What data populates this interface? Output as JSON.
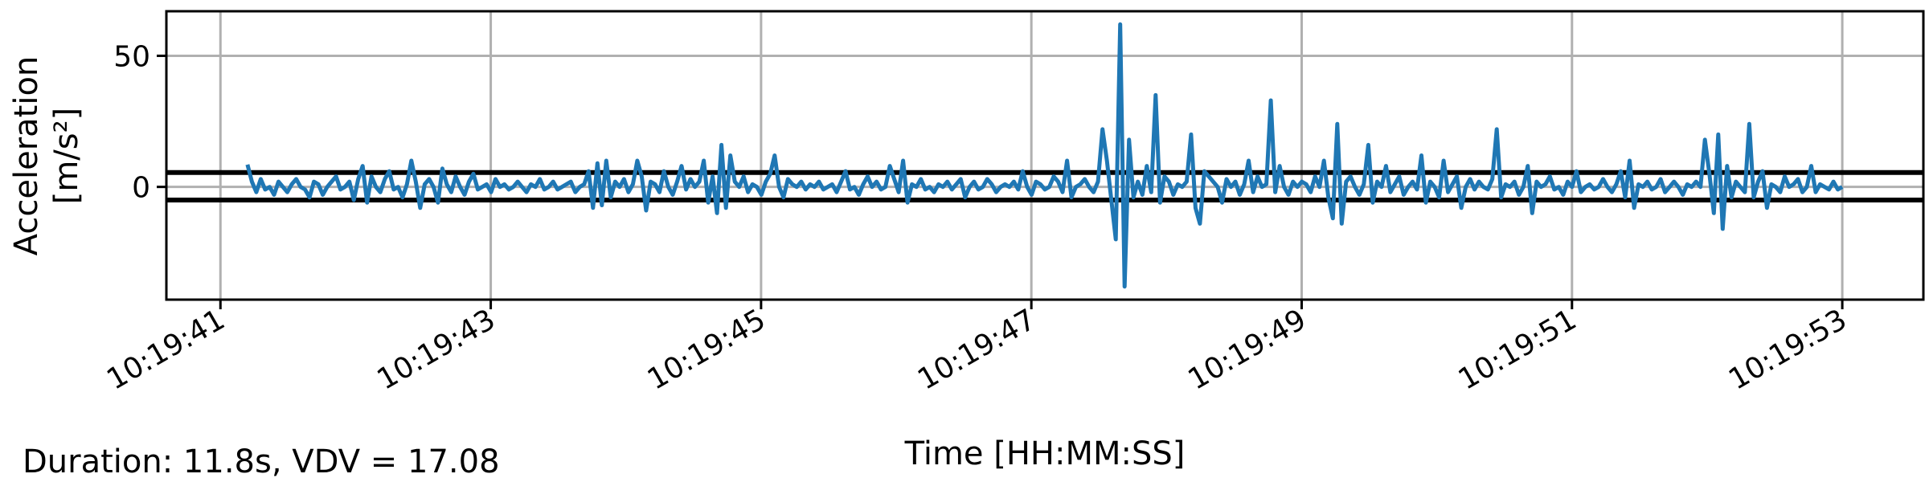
{
  "footer": {
    "summary": "Duration: 11.8s, VDV = 17.08"
  },
  "chart_data": {
    "type": "line",
    "xlabel": "Time [HH:MM:SS]",
    "ylabel_line1": "Acceleration",
    "ylabel_line2": "[m/s²]",
    "xlim": [
      "10:19:40.6",
      "10:19:53.6"
    ],
    "ylim": [
      -43,
      67
    ],
    "x_ticks": [
      "10:19:41",
      "10:19:43",
      "10:19:45",
      "10:19:47",
      "10:19:49",
      "10:19:51",
      "10:19:53"
    ],
    "y_ticks": [
      0,
      50
    ],
    "grid": true,
    "colors": {
      "series": "#1f77b4",
      "threshold": "#000000",
      "grid": "#b0b0b0"
    },
    "thresholds": [
      5.5,
      -5
    ],
    "series": [
      {
        "x_start": "10:19:41.2",
        "x_end": "10:19:53.0",
        "values": [
          8.5,
          2,
          -2,
          3,
          -1,
          0,
          -3,
          2,
          0,
          -2,
          1,
          3,
          0,
          -1,
          -4,
          2,
          1,
          -3,
          0,
          2,
          4,
          -1,
          0,
          2,
          -5,
          3,
          8,
          -6,
          4,
          0,
          -2,
          3,
          6,
          -1,
          0,
          -4,
          1,
          10,
          2,
          -8,
          1,
          3,
          0,
          -6,
          7,
          1,
          -2,
          4,
          0,
          -3,
          2,
          5,
          -1,
          0,
          1,
          -2,
          3,
          0,
          1,
          -1,
          0,
          2,
          0,
          -2,
          1,
          0,
          3,
          -1,
          0,
          2,
          -1,
          0,
          1,
          2,
          -2,
          0,
          1,
          6,
          -8,
          9,
          -7,
          10,
          -4,
          2,
          0,
          3,
          -2,
          1,
          10,
          4,
          -9,
          2,
          1,
          -2,
          6,
          0,
          -3,
          2,
          8,
          -1,
          3,
          0,
          2,
          10,
          -6,
          4,
          -10,
          16,
          -8,
          12,
          2,
          0,
          4,
          -2,
          1,
          0,
          -3,
          2,
          5,
          12,
          0,
          -4,
          3,
          1,
          0,
          2,
          -1,
          1,
          0,
          2,
          -1,
          0,
          1,
          -2,
          2,
          6,
          -1,
          0,
          -3,
          1,
          4,
          0,
          2,
          -1,
          0,
          8,
          3,
          -2,
          10,
          -6,
          1,
          0,
          3,
          -1,
          0,
          -2,
          1,
          0,
          2,
          -1,
          1,
          3,
          -4,
          0,
          2,
          -1,
          0,
          3,
          1,
          -2,
          0,
          1,
          0,
          2,
          -1,
          6,
          0,
          -3,
          2,
          1,
          -1,
          0,
          4,
          2,
          -2,
          10,
          -4,
          0,
          1,
          3,
          0,
          -2,
          2,
          22,
          10,
          -5,
          -20,
          62,
          -38,
          18,
          -4,
          2,
          -3,
          8,
          -2,
          35,
          -6,
          4,
          2,
          -3,
          1,
          0,
          2,
          20,
          -8,
          -14,
          6,
          4,
          2,
          0,
          -6,
          3,
          0,
          2,
          -3,
          1,
          10,
          -2,
          4,
          0,
          1,
          33,
          -2,
          8,
          0,
          -3,
          2,
          0,
          2,
          1,
          -2,
          4,
          0,
          10,
          -4,
          -12,
          24,
          -14,
          2,
          4,
          0,
          -3,
          1,
          16,
          -6,
          2,
          0,
          8,
          -2,
          1,
          4,
          -3,
          0,
          2,
          -1,
          12,
          -6,
          2,
          0,
          -4,
          10,
          -2,
          1,
          4,
          -8,
          0,
          3,
          -1,
          2,
          0,
          -1,
          3,
          22,
          -4,
          1,
          0,
          2,
          -3,
          0,
          8,
          -10,
          2,
          0,
          1,
          4,
          -1,
          0,
          -3,
          2,
          0,
          6,
          -2,
          0,
          1,
          -1,
          0,
          3,
          0,
          -2,
          1,
          6,
          -4,
          10,
          -8,
          1,
          0,
          2,
          -1,
          0,
          3,
          -2,
          0,
          2,
          0,
          -3,
          1,
          0,
          2,
          0,
          18,
          5,
          -10,
          20,
          -16,
          8,
          -4,
          2,
          0,
          -2,
          24,
          -4,
          2,
          6,
          -8,
          1,
          0,
          -2,
          4,
          0,
          1,
          3,
          -2,
          0,
          8,
          -2,
          1,
          0,
          -1,
          2,
          -1,
          0
        ]
      }
    ]
  }
}
